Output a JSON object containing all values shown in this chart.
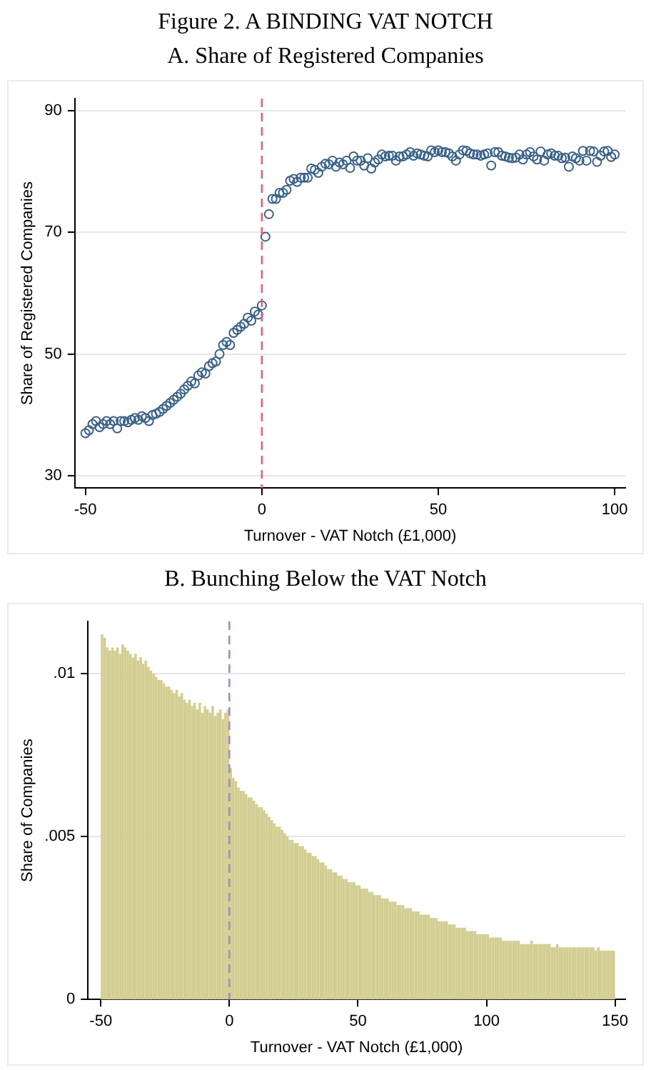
{
  "chart_data": [
    {
      "type": "scatter",
      "title": "Figure 2. A BINDING VAT NOTCH",
      "subtitle": "A. Share of Registered Companies",
      "xlabel": "Turnover - VAT Notch (£1,000)",
      "ylabel": "Share of Registered Companies",
      "xlim": [
        -53,
        103
      ],
      "xticks": [
        -50,
        0,
        50,
        100
      ],
      "ylim": [
        28,
        92
      ],
      "yticks": [
        30,
        50,
        70,
        90
      ],
      "grid": "y",
      "legend": false,
      "marker": "circle",
      "ref_lines": [
        {
          "axis": "x",
          "value": 0,
          "color": "#e0607e",
          "line_style": "dashed"
        }
      ],
      "series": [
        {
          "color": "#3a6187",
          "x": [
            -50,
            -49,
            -48,
            -47,
            -46,
            -45,
            -44,
            -43,
            -42,
            -41,
            -40,
            -39,
            -38,
            -37,
            -36,
            -35,
            -34,
            -33,
            -32,
            -31,
            -30,
            -29,
            -28,
            -27,
            -26,
            -25,
            -24,
            -23,
            -22,
            -21,
            -20,
            -19,
            -18,
            -17,
            -16,
            -15,
            -14,
            -13,
            -12,
            -11,
            -10,
            -9,
            -8,
            -7,
            -6,
            -5,
            -4,
            -3,
            -2,
            -1,
            0,
            1,
            2,
            3,
            4,
            5,
            6,
            7,
            8,
            9,
            10,
            11,
            12,
            13,
            14,
            15,
            16,
            17,
            18,
            19,
            20,
            21,
            22,
            23,
            24,
            25,
            26,
            27,
            28,
            29,
            30,
            31,
            32,
            33,
            34,
            35,
            36,
            37,
            38,
            39,
            40,
            41,
            42,
            43,
            44,
            45,
            46,
            47,
            48,
            49,
            50,
            51,
            52,
            53,
            54,
            55,
            56,
            57,
            58,
            59,
            60,
            61,
            62,
            63,
            64,
            65,
            66,
            67,
            68,
            69,
            70,
            71,
            72,
            73,
            74,
            75,
            76,
            77,
            78,
            79,
            80,
            81,
            82,
            83,
            84,
            85,
            86,
            87,
            88,
            89,
            90,
            91,
            92,
            93,
            94,
            95,
            96,
            97,
            98,
            99,
            100
          ],
          "values": [
            37,
            37.5,
            38.5,
            39,
            38,
            38.5,
            39,
            38.5,
            39,
            37.8,
            39,
            39,
            38.8,
            39.2,
            39.5,
            39.2,
            39.8,
            39.5,
            39,
            40,
            40.2,
            40.5,
            41,
            41.5,
            42,
            42.5,
            43,
            43.5,
            44.2,
            44.8,
            45.5,
            45.2,
            46.5,
            47,
            46.8,
            48,
            48.5,
            48.8,
            50,
            51.5,
            52,
            51.5,
            53.5,
            54,
            54.5,
            55,
            56,
            55.5,
            57,
            56.5,
            58,
            69.3,
            73,
            75.5,
            75.5,
            76.5,
            76.5,
            77,
            78.5,
            78.8,
            78.3,
            79,
            79,
            79,
            80.5,
            80.3,
            79.8,
            80.8,
            81.3,
            81.2,
            81.8,
            80.8,
            81.5,
            81.2,
            81.8,
            80.6,
            82.5,
            81.8,
            81.8,
            81,
            82.2,
            80.5,
            81.5,
            82,
            82.8,
            82.5,
            82.6,
            82.6,
            81.8,
            82.5,
            82.5,
            82.8,
            83.2,
            82.6,
            83,
            82.8,
            82.6,
            82.5,
            83.5,
            83.2,
            83.5,
            83.2,
            83.2,
            83,
            82.5,
            81.8,
            82.8,
            83.5,
            83.4,
            83,
            82.8,
            82.8,
            82.6,
            82.8,
            83,
            81,
            83.2,
            83.2,
            82.6,
            82.5,
            82.3,
            82.2,
            82.3,
            82.8,
            82,
            82.8,
            83.2,
            82.5,
            82,
            83.3,
            81.8,
            82.8,
            83,
            82.6,
            82.6,
            82.2,
            82.3,
            80.8,
            82.5,
            82.2,
            81.8,
            83.4,
            81.8,
            83.4,
            83.3,
            81.6,
            82.6,
            83.3,
            83.4,
            82.4,
            82.8
          ]
        }
      ]
    },
    {
      "type": "histogram",
      "title": "B. Bunching Below the VAT Notch",
      "xlabel": "Turnover - VAT Notch (£1,000)",
      "ylabel": "Share of Companies",
      "xlim": [
        -55,
        154
      ],
      "xticks": [
        -50,
        0,
        50,
        100,
        150
      ],
      "ylim": [
        0,
        0.0116
      ],
      "yticks": [
        {
          "value": 0,
          "label": "0"
        },
        {
          "value": 0.005,
          "label": ".005"
        },
        {
          "value": 0.01,
          "label": ".01"
        }
      ],
      "grid": "y",
      "legend": false,
      "color": "#d2ce92",
      "ref_lines": [
        {
          "axis": "x",
          "value": 0,
          "color": "#a98bbf",
          "line_style": "dashed"
        }
      ],
      "bins": [
        -50,
        -49,
        -48,
        -47,
        -46,
        -45,
        -44,
        -43,
        -42,
        -41,
        -40,
        -39,
        -38,
        -37,
        -36,
        -35,
        -34,
        -33,
        -32,
        -31,
        -30,
        -29,
        -28,
        -27,
        -26,
        -25,
        -24,
        -23,
        -22,
        -21,
        -20,
        -19,
        -18,
        -17,
        -16,
        -15,
        -14,
        -13,
        -12,
        -11,
        -10,
        -9,
        -8,
        -7,
        -6,
        -5,
        -4,
        -3,
        -2,
        -1,
        0,
        1,
        2,
        3,
        4,
        5,
        6,
        7,
        8,
        9,
        10,
        11,
        12,
        13,
        14,
        15,
        16,
        17,
        18,
        19,
        20,
        21,
        22,
        23,
        24,
        25,
        26,
        27,
        28,
        29,
        30,
        31,
        32,
        33,
        34,
        35,
        36,
        37,
        38,
        39,
        40,
        41,
        42,
        43,
        44,
        45,
        46,
        47,
        48,
        49,
        50,
        51,
        52,
        53,
        54,
        55,
        56,
        57,
        58,
        59,
        60,
        61,
        62,
        63,
        64,
        65,
        66,
        67,
        68,
        69,
        70,
        71,
        72,
        73,
        74,
        75,
        76,
        77,
        78,
        79,
        80,
        81,
        82,
        83,
        84,
        85,
        86,
        87,
        88,
        89,
        90,
        91,
        92,
        93,
        94,
        95,
        96,
        97,
        98,
        99,
        100,
        101,
        102,
        103,
        104,
        105,
        106,
        107,
        108,
        109,
        110,
        111,
        112,
        113,
        114,
        115,
        116,
        117,
        118,
        119,
        120,
        121,
        122,
        123,
        124,
        125,
        126,
        127,
        128,
        129,
        130,
        131,
        132,
        133,
        134,
        135,
        136,
        137,
        138,
        139,
        140,
        141,
        142,
        143,
        144,
        145,
        146,
        147,
        148,
        149,
        150
      ],
      "values": [
        0.0112,
        0.0111,
        0.0108,
        0.0107,
        0.0108,
        0.0107,
        0.0108,
        0.0106,
        0.0109,
        0.0108,
        0.0107,
        0.0106,
        0.0105,
        0.0106,
        0.0104,
        0.0105,
        0.0103,
        0.0104,
        0.0102,
        0.0101,
        0.01,
        0.0099,
        0.0098,
        0.0098,
        0.0097,
        0.0096,
        0.0096,
        0.0095,
        0.0094,
        0.0095,
        0.0093,
        0.0094,
        0.0092,
        0.0091,
        0.0092,
        0.009,
        0.0091,
        0.0089,
        0.0091,
        0.0088,
        0.009,
        0.0089,
        0.0088,
        0.009,
        0.0087,
        0.0088,
        0.0089,
        0.0086,
        0.0088,
        0.0089,
        0.0071,
        0.0068,
        0.0067,
        0.0065,
        0.0064,
        0.0064,
        0.0063,
        0.0062,
        0.0062,
        0.0061,
        0.006,
        0.0059,
        0.0059,
        0.0058,
        0.0057,
        0.0056,
        0.0055,
        0.0054,
        0.0053,
        0.0053,
        0.0052,
        0.0051,
        0.005,
        0.0049,
        0.0049,
        0.0048,
        0.0048,
        0.0047,
        0.0047,
        0.0046,
        0.0045,
        0.0045,
        0.0044,
        0.0044,
        0.0043,
        0.0042,
        0.0042,
        0.0041,
        0.004,
        0.004,
        0.0039,
        0.0039,
        0.0038,
        0.0038,
        0.0037,
        0.0037,
        0.0036,
        0.0036,
        0.0036,
        0.0035,
        0.0035,
        0.0034,
        0.0034,
        0.0034,
        0.0033,
        0.0033,
        0.0032,
        0.0032,
        0.0032,
        0.0031,
        0.0031,
        0.0031,
        0.003,
        0.003,
        0.003,
        0.0029,
        0.0029,
        0.0029,
        0.0028,
        0.0028,
        0.0028,
        0.0027,
        0.0027,
        0.0027,
        0.0026,
        0.0026,
        0.0026,
        0.0026,
        0.0025,
        0.0025,
        0.0025,
        0.0024,
        0.0024,
        0.0024,
        0.0024,
        0.0023,
        0.0023,
        0.0023,
        0.0022,
        0.0022,
        0.0022,
        0.0022,
        0.0021,
        0.0021,
        0.0021,
        0.0021,
        0.002,
        0.002,
        0.002,
        0.002,
        0.002,
        0.0019,
        0.0019,
        0.0019,
        0.0019,
        0.0019,
        0.0018,
        0.0018,
        0.0018,
        0.0018,
        0.0018,
        0.0018,
        0.0018,
        0.0017,
        0.0017,
        0.0017,
        0.0017,
        0.0018,
        0.0017,
        0.0017,
        0.0017,
        0.0017,
        0.0017,
        0.0017,
        0.0017,
        0.0016,
        0.0016,
        0.0017,
        0.0016,
        0.0016,
        0.0016,
        0.0016,
        0.0016,
        0.0016,
        0.0016,
        0.0016,
        0.0016,
        0.0016,
        0.0016,
        0.0016,
        0.0016,
        0.0016,
        0.0015,
        0.0016,
        0.0015,
        0.0015,
        0.0015,
        0.0015,
        0.0015,
        0.0015
      ]
    }
  ]
}
